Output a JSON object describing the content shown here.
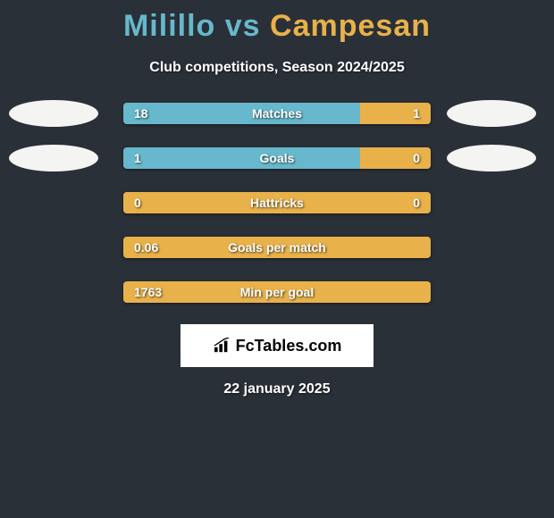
{
  "title": {
    "player1": "Milillo",
    "vs": "vs",
    "player2": "Campesan",
    "player1_color": "#67b8cc",
    "player2_color": "#e8b14a"
  },
  "subtitle": "Club competitions, Season 2024/2025",
  "colors": {
    "background": "#2a3038",
    "avatar_fill": "#f4f4f2",
    "text": "#ffffff"
  },
  "stats": [
    {
      "label": "Matches",
      "left_value": "18",
      "right_value": "1",
      "left_pct": 77,
      "right_pct": 23,
      "left_color": "#67b8cc",
      "right_color": "#e8b14a",
      "show_avatars": true
    },
    {
      "label": "Goals",
      "left_value": "1",
      "right_value": "0",
      "left_pct": 77,
      "right_pct": 23,
      "left_color": "#67b8cc",
      "right_color": "#e8b14a",
      "show_avatars": true
    },
    {
      "label": "Hattricks",
      "left_value": "0",
      "right_value": "0",
      "left_pct": 100,
      "right_pct": 0,
      "left_color": "#e8b14a",
      "right_color": "#e8b14a",
      "show_avatars": false
    },
    {
      "label": "Goals per match",
      "left_value": "0.06",
      "right_value": "",
      "left_pct": 100,
      "right_pct": 0,
      "left_color": "#e8b14a",
      "right_color": "#e8b14a",
      "show_avatars": false
    },
    {
      "label": "Min per goal",
      "left_value": "1763",
      "right_value": "",
      "left_pct": 100,
      "right_pct": 0,
      "left_color": "#e8b14a",
      "right_color": "#e8b14a",
      "show_avatars": false
    }
  ],
  "logo_text": "FcTables.com",
  "date": "22 january 2025"
}
